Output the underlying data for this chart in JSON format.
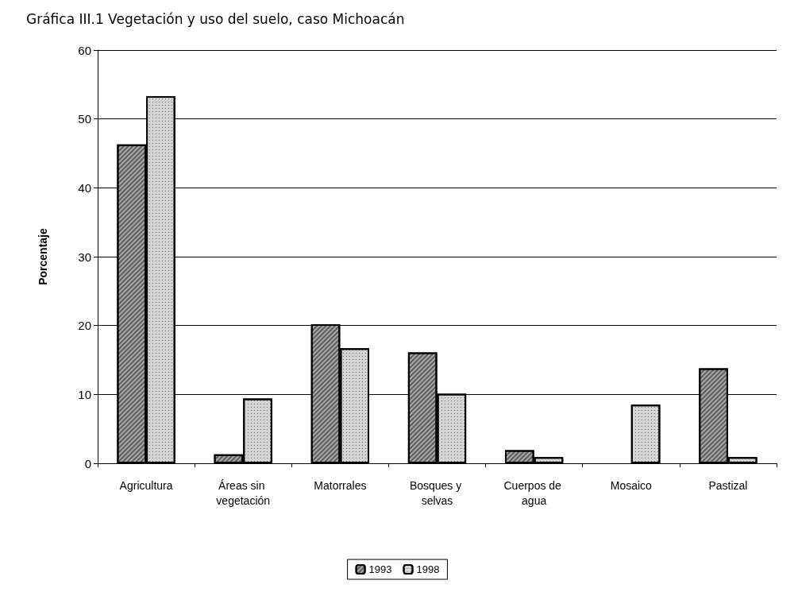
{
  "chart_data": {
    "type": "bar",
    "title": "Gráfica III.1 Vegetación y uso del suelo, caso Michoacán",
    "ylabel": "Porcentaje",
    "categories": [
      "Agricultura",
      "Áreas sin vegetación",
      "Matorrales",
      "Bosques y selvas",
      "Cuerpos de agua",
      "Mosaico",
      "Pastizal"
    ],
    "series": [
      {
        "name": "1993",
        "color": "#a8a8a8",
        "values": [
          46.3,
          1.3,
          20.2,
          16.1,
          1.9,
          null,
          13.8
        ]
      },
      {
        "name": "1998",
        "color": "#d4d4d4",
        "values": [
          53.3,
          9.4,
          16.7,
          10.1,
          0.9,
          8.5,
          0.9
        ]
      }
    ],
    "ylim": [
      0,
      60
    ],
    "yticks": [
      0,
      10,
      20,
      30,
      40,
      50,
      60
    ],
    "grid": "y",
    "legend": "bottom"
  }
}
